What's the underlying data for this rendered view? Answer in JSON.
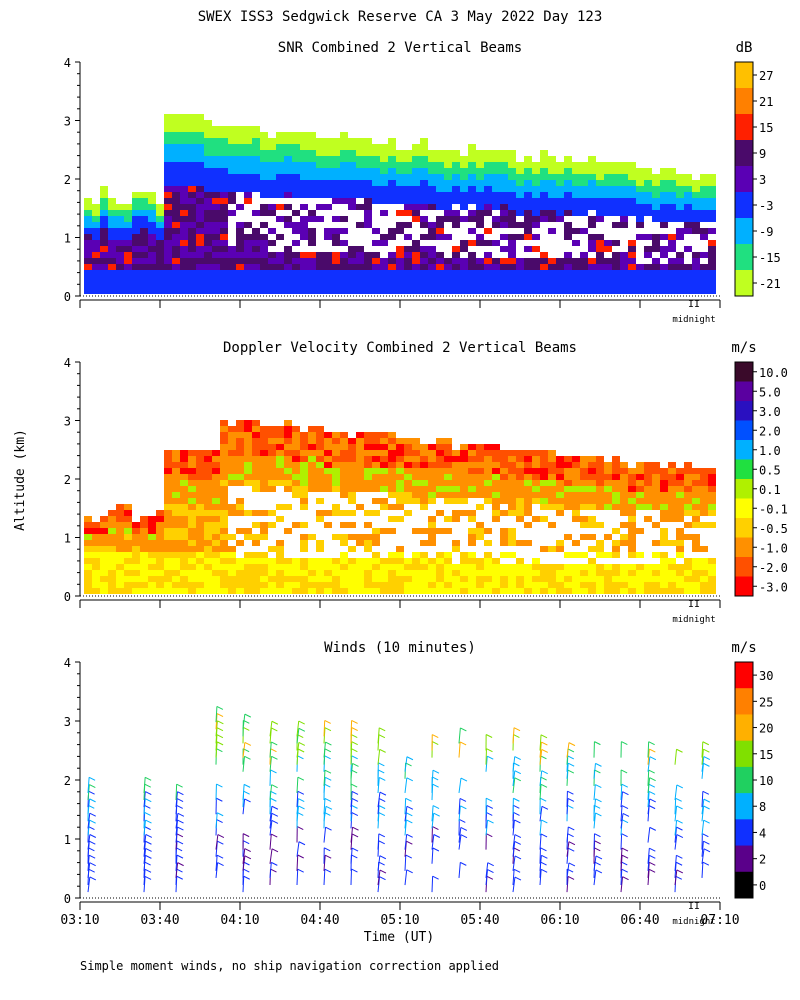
{
  "page": {
    "title": "SWEX ISS3 Sedgwick Reserve CA   3 May 2022 Day 123",
    "ylabel": "Altitude (km)",
    "xlabel": "Time (UT)",
    "footnote": "Simple moment winds, no ship navigation correction applied",
    "midnight_label": "midnight",
    "midnight_tick": "II"
  },
  "chart_data": [
    {
      "type": "heatmap",
      "title": "SNR Combined 2 Vertical Beams",
      "unit": "dB",
      "y_ticks": [
        "0",
        "1",
        "2",
        "3",
        "4"
      ],
      "ylim": [
        0,
        4
      ],
      "x_range_ut": [
        "03:10",
        "07:10"
      ],
      "colorbar_labels": [
        "27",
        "21",
        "15",
        "9",
        "3",
        "-3",
        "-9",
        "-15",
        "-21"
      ],
      "colorbar_colors": [
        "#ffc000",
        "#ff8000",
        "#ff2000",
        "#4a0a6a",
        "#5a00b4",
        "#1030ff",
        "#00b0ff",
        "#20e080",
        "#c0ff20"
      ]
    },
    {
      "type": "heatmap",
      "title": "Doppler Velocity Combined 2 Vertical Beams",
      "unit": "m/s",
      "y_ticks": [
        "0",
        "1",
        "2",
        "3",
        "4"
      ],
      "ylim": [
        0,
        4
      ],
      "x_range_ut": [
        "03:10",
        "07:10"
      ],
      "colorbar_labels": [
        "10.0",
        "5.0",
        "3.0",
        "2.0",
        "1.0",
        "0.5",
        "0.1",
        "-0.1",
        "-0.5",
        "-1.0",
        "-2.0",
        "-3.0"
      ],
      "colorbar_colors": [
        "#3a0a2a",
        "#5a00a0",
        "#2a10c0",
        "#0050ff",
        "#00b0ff",
        "#20e040",
        "#b0f000",
        "#ffff00",
        "#ffd000",
        "#ff9000",
        "#ff5000",
        "#ff0000"
      ]
    },
    {
      "type": "scatter",
      "title": "Winds (10 minutes)",
      "unit": "m/s",
      "y_ticks": [
        "0",
        "1",
        "2",
        "3",
        "4"
      ],
      "ylim": [
        0,
        4
      ],
      "x_tick_labels": [
        "03:10",
        "03:40",
        "04:10",
        "04:40",
        "05:10",
        "05:40",
        "06:10",
        "06:40",
        "07:10"
      ],
      "colorbar_labels": [
        "30",
        "25",
        "20",
        "15",
        "10",
        "8",
        "4",
        "2",
        "0"
      ],
      "colorbar_colors": [
        "#ff0000",
        "#ff8000",
        "#ffb000",
        "#80e000",
        "#20d060",
        "#00b0ff",
        "#1030ff",
        "#5a008a",
        "#000000"
      ]
    }
  ]
}
